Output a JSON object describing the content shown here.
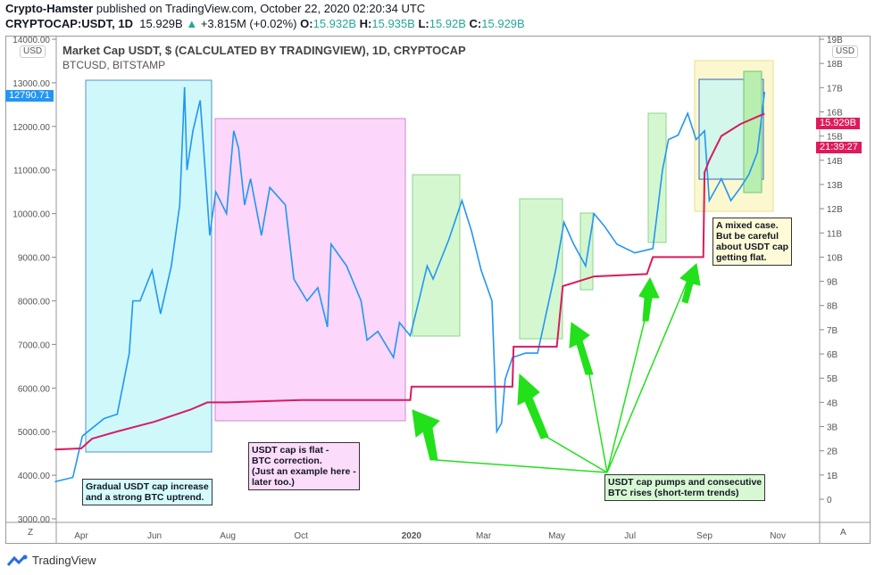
{
  "header": {
    "author": "Crypto-Hamster",
    "published": "published on TradingView.com, October 22, 2020 02:20:34 UTC",
    "symbol": "CRYPTOCAP:USDT, 1D",
    "last": "15.929B",
    "change": "+3.815M (+0.02%)",
    "o_label": "O:",
    "o": "15.932B",
    "h_label": "H:",
    "h": "15.935B",
    "l_label": "L:",
    "l": "15.92B",
    "c_label": "C:",
    "c": "15.929B"
  },
  "legend": {
    "series1": "Market Cap USDT, $ (CALCULATED BY TRADINGVIEW), 1D, CRYPTOCAP",
    "series2": "BTCUSD, BITSTAMP"
  },
  "axis_badges": {
    "left": "USD",
    "right": "USD",
    "left_price": "12790.71",
    "right_price": "15.929B",
    "countdown": "21:39:27",
    "z": "Z",
    "a": "A"
  },
  "colors": {
    "btc": "#2196f3",
    "usdt": "#d81b60",
    "arrow": "#22e01a"
  },
  "annotations": {
    "gradual": "Gradual USDT cap increase\nand a strong BTC uptrend.",
    "flat": "USDT cap is flat -\nBTC correction.\n(Just an example here -\nlater too.)",
    "pumps": "USDT cap pumps and consecutive\nBTC rises (short-term trends)",
    "mixed": "A mixed case.\nBut be careful\nabout USDT cap\ngetting flat."
  },
  "footer": {
    "brand": "TradingView"
  },
  "chart_data": {
    "type": "line",
    "x_ticks": [
      "Apr",
      "Jun",
      "Aug",
      "Oct",
      "2020",
      "Mar",
      "May",
      "Jul",
      "Sep",
      "Nov"
    ],
    "left_axis": {
      "ticks": [
        "14000.00",
        "13000.00",
        "12000.00",
        "11000.00",
        "10000.00",
        "9000.00",
        "8000.00",
        "7000.00",
        "6000.00",
        "5000.00",
        "4000.00",
        "3000.00"
      ],
      "range": [
        3000,
        14000
      ]
    },
    "right_axis": {
      "ticks": [
        "19B",
        "18B",
        "17B",
        "16B",
        "15B",
        "14B",
        "13B",
        "12B",
        "11B",
        "10B",
        "9B",
        "8B",
        "7B",
        "6B",
        "5B",
        "4B",
        "3B",
        "2B",
        "1B",
        "0"
      ],
      "range": [
        0,
        19
      ]
    },
    "series": [
      {
        "name": "BTCUSD, BITSTAMP",
        "axis": "left",
        "points": [
          [
            "2019-03-10",
            3850
          ],
          [
            "2019-03-25",
            3950
          ],
          [
            "2019-04-02",
            4900
          ],
          [
            "2019-04-20",
            5300
          ],
          [
            "2019-05-01",
            5400
          ],
          [
            "2019-05-11",
            6800
          ],
          [
            "2019-05-14",
            8000
          ],
          [
            "2019-05-20",
            8000
          ],
          [
            "2019-05-30",
            8700
          ],
          [
            "2019-06-06",
            7700
          ],
          [
            "2019-06-15",
            8800
          ],
          [
            "2019-06-22",
            10200
          ],
          [
            "2019-06-26",
            12900
          ],
          [
            "2019-06-28",
            11000
          ],
          [
            "2019-07-03",
            11900
          ],
          [
            "2019-07-09",
            12600
          ],
          [
            "2019-07-15",
            10300
          ],
          [
            "2019-07-17",
            9500
          ],
          [
            "2019-07-22",
            10500
          ],
          [
            "2019-07-31",
            10000
          ],
          [
            "2019-08-06",
            11900
          ],
          [
            "2019-08-10",
            11500
          ],
          [
            "2019-08-15",
            10200
          ],
          [
            "2019-08-20",
            10800
          ],
          [
            "2019-08-29",
            9500
          ],
          [
            "2019-09-05",
            10600
          ],
          [
            "2019-09-18",
            10200
          ],
          [
            "2019-09-25",
            8500
          ],
          [
            "2019-10-06",
            8000
          ],
          [
            "2019-10-15",
            8300
          ],
          [
            "2019-10-23",
            7400
          ],
          [
            "2019-10-26",
            9300
          ],
          [
            "2019-11-08",
            8800
          ],
          [
            "2019-11-20",
            8000
          ],
          [
            "2019-11-25",
            7100
          ],
          [
            "2019-12-04",
            7300
          ],
          [
            "2019-12-17",
            6700
          ],
          [
            "2019-12-22",
            7500
          ],
          [
            "2019-12-31",
            7200
          ],
          [
            "2020-01-08",
            8100
          ],
          [
            "2020-01-14",
            8800
          ],
          [
            "2020-01-19",
            8500
          ],
          [
            "2020-02-01",
            9400
          ],
          [
            "2020-02-12",
            10300
          ],
          [
            "2020-02-20",
            9600
          ],
          [
            "2020-02-28",
            8700
          ],
          [
            "2020-03-08",
            8000
          ],
          [
            "2020-03-12",
            5000
          ],
          [
            "2020-03-16",
            5200
          ],
          [
            "2020-03-19",
            6200
          ],
          [
            "2020-03-25",
            6700
          ],
          [
            "2020-04-05",
            6800
          ],
          [
            "2020-04-15",
            6800
          ],
          [
            "2020-04-30",
            8700
          ],
          [
            "2020-05-07",
            9800
          ],
          [
            "2020-05-15",
            9300
          ],
          [
            "2020-05-25",
            8800
          ],
          [
            "2020-06-01",
            10000
          ],
          [
            "2020-06-10",
            9700
          ],
          [
            "2020-06-20",
            9300
          ],
          [
            "2020-07-05",
            9100
          ],
          [
            "2020-07-20",
            9200
          ],
          [
            "2020-07-28",
            11000
          ],
          [
            "2020-08-02",
            11700
          ],
          [
            "2020-08-10",
            11800
          ],
          [
            "2020-08-18",
            12300
          ],
          [
            "2020-08-25",
            11700
          ],
          [
            "2020-09-01",
            11900
          ],
          [
            "2020-09-05",
            10300
          ],
          [
            "2020-09-15",
            10800
          ],
          [
            "2020-09-23",
            10300
          ],
          [
            "2020-10-01",
            10600
          ],
          [
            "2020-10-08",
            10900
          ],
          [
            "2020-10-15",
            11400
          ],
          [
            "2020-10-21",
            12790.71
          ]
        ]
      },
      {
        "name": "Market Cap USDT, $ (CALCULATED BY TRADINGVIEW), 1D, CRYPTOCAP",
        "axis": "right",
        "points": [
          [
            "2019-03-10",
            2.05
          ],
          [
            "2019-04-01",
            2.1
          ],
          [
            "2019-04-10",
            2.5
          ],
          [
            "2019-05-01",
            2.8
          ],
          [
            "2019-06-01",
            3.2
          ],
          [
            "2019-07-01",
            3.7
          ],
          [
            "2019-07-15",
            4.0
          ],
          [
            "2019-08-01",
            4.0
          ],
          [
            "2019-09-01",
            4.05
          ],
          [
            "2019-10-01",
            4.1
          ],
          [
            "2019-12-31",
            4.1
          ],
          [
            "2020-01-01",
            4.65
          ],
          [
            "2020-03-25",
            4.65
          ],
          [
            "2020-03-26",
            6.3
          ],
          [
            "2020-05-01",
            6.3
          ],
          [
            "2020-05-06",
            8.8
          ],
          [
            "2020-06-01",
            9.2
          ],
          [
            "2020-07-15",
            9.3
          ],
          [
            "2020-07-20",
            10.0
          ],
          [
            "2020-08-31",
            10.0
          ],
          [
            "2020-09-01",
            13.5
          ],
          [
            "2020-09-05",
            14.0
          ],
          [
            "2020-09-15",
            15.0
          ],
          [
            "2020-10-01",
            15.5
          ],
          [
            "2020-10-21",
            15.929
          ]
        ]
      }
    ],
    "grid": false
  }
}
